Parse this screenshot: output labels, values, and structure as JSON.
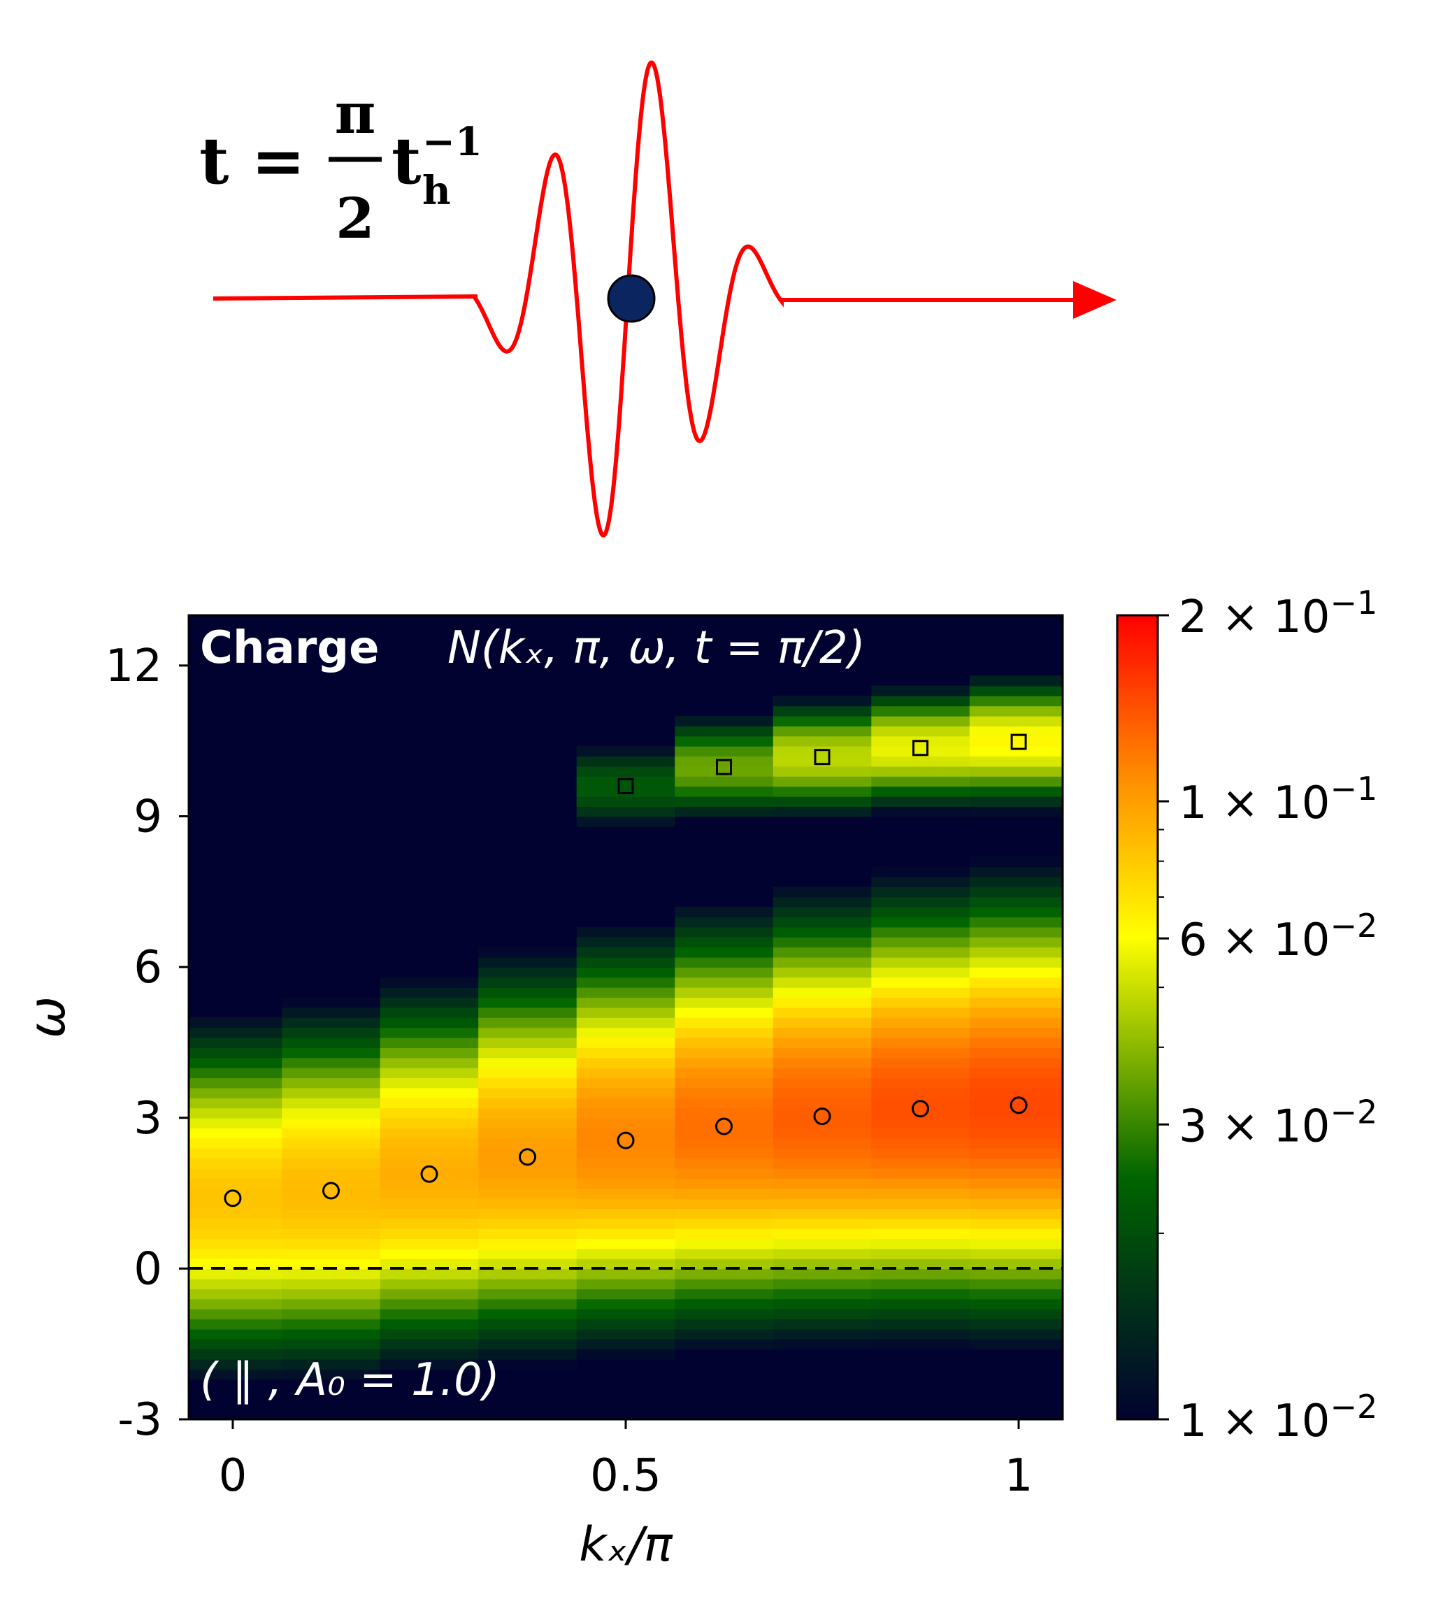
{
  "pulse_label": {
    "prefix": "t = ",
    "numerator": "π",
    "denominator": "2",
    "base": "t",
    "sub": "h",
    "sup": "−1"
  },
  "colors": {
    "pulse": "#ff0000",
    "particle": "#0a2560",
    "heatmap_bg": "#020230",
    "text_overlay": "#ffffff"
  },
  "chart_data": {
    "type": "heatmap",
    "title_bold": "Charge",
    "title_math": "N(kₓ, π, ω, t = π/2)",
    "annotation": "( ∥ , A₀ = 1.0)",
    "xlabel": "kₓ/π",
    "ylabel": "ω",
    "xlim": [
      -0.056,
      1.056
    ],
    "ylim": [
      -3,
      13
    ],
    "xticks": [
      0,
      0.5,
      1
    ],
    "xtick_labels": [
      "0",
      "0.5",
      "1"
    ],
    "yticks": [
      -3,
      0,
      3,
      6,
      9,
      12
    ],
    "ytick_labels": [
      "-3",
      "0",
      "3",
      "6",
      "9",
      "12"
    ],
    "kx": [
      0,
      0.125,
      0.25,
      0.375,
      0.5,
      0.625,
      0.75,
      0.875,
      1
    ],
    "lower_band": {
      "omega": [
        1.4,
        1.55,
        1.88,
        2.22,
        2.55,
        2.83,
        3.03,
        3.18,
        3.25
      ],
      "peak_intensity": [
        0.078,
        0.082,
        0.088,
        0.096,
        0.108,
        0.12,
        0.13,
        0.138,
        0.143
      ],
      "width": [
        2.3,
        2.35,
        2.4,
        2.5,
        2.55,
        2.6,
        2.65,
        2.7,
        2.75
      ]
    },
    "upper_band": {
      "omega": [
        null,
        null,
        null,
        null,
        9.6,
        9.98,
        10.18,
        10.36,
        10.48
      ],
      "peak_intensity": [
        0,
        0,
        0,
        0,
        0.018,
        0.032,
        0.044,
        0.052,
        0.058
      ],
      "width": [
        0.7,
        0.7,
        0.7,
        0.7,
        0.75,
        0.8,
        0.85,
        0.85,
        0.9
      ]
    },
    "reference_line": {
      "omega": 0,
      "style": "dashed"
    },
    "colorbar": {
      "scale": "log",
      "range": [
        0.01,
        0.2
      ],
      "colormap": [
        "#020230",
        "#006400",
        "#ffff00",
        "#ff8c00",
        "#ff0000"
      ],
      "ticks": [
        0.2,
        0.1,
        0.06,
        0.03,
        0.01
      ],
      "tick_labels": [
        {
          "mant": "2",
          "exp": "−1"
        },
        {
          "mant": "1",
          "exp": "−1"
        },
        {
          "mant": "6",
          "exp": "−2"
        },
        {
          "mant": "3",
          "exp": "−2"
        },
        {
          "mant": "1",
          "exp": "−2"
        }
      ]
    }
  }
}
